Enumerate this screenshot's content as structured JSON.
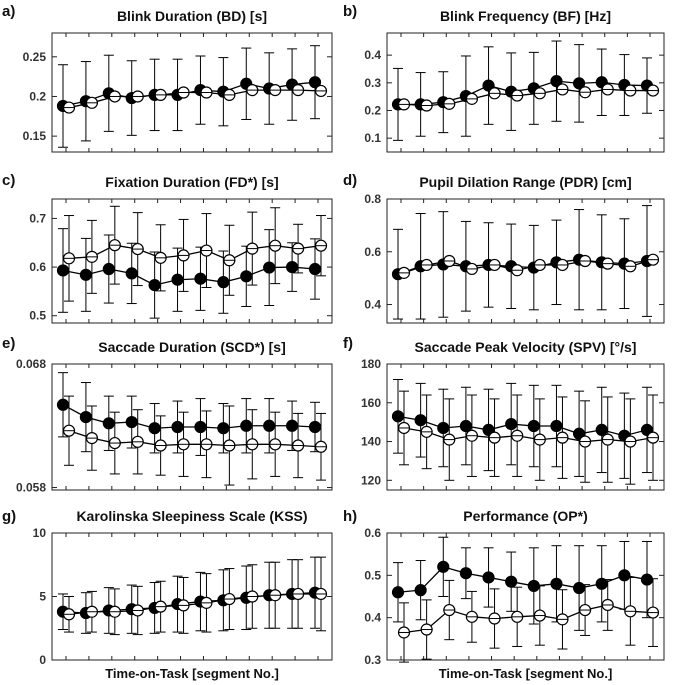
{
  "chart_data": [
    {
      "panel": "a)",
      "type": "line",
      "title": "Blink Duration (BD) [s]",
      "xlabel": "",
      "ylabel": "",
      "ylim": [
        0.13,
        0.28
      ],
      "yticks": [
        0.15,
        0.2,
        0.25
      ],
      "yticklabels": [
        "0.15",
        "0.2",
        "0.25"
      ],
      "x": [
        1,
        2,
        3,
        4,
        5,
        6,
        7,
        8,
        9,
        10,
        11,
        12
      ],
      "series": [
        {
          "marker": "filled",
          "values": [
            0.188,
            0.194,
            0.204,
            0.198,
            0.202,
            0.202,
            0.208,
            0.206,
            0.216,
            0.21,
            0.215,
            0.218
          ],
          "error": [
            0.052,
            0.05,
            0.048,
            0.047,
            0.045,
            0.045,
            0.043,
            0.043,
            0.045,
            0.045,
            0.045,
            0.046
          ]
        },
        {
          "marker": "open",
          "values": [
            0.186,
            0.192,
            0.2,
            0.2,
            0.202,
            0.205,
            0.205,
            0.202,
            0.208,
            0.208,
            0.208,
            0.207
          ],
          "error": [
            0.0,
            0.0,
            0.0,
            0.0,
            0.0,
            0.0,
            0.0,
            0.0,
            0.0,
            0.0,
            0.0,
            0.0
          ]
        }
      ]
    },
    {
      "panel": "b)",
      "type": "line",
      "title": "Blink Frequency (BF) [Hz]",
      "xlabel": "",
      "ylabel": "",
      "ylim": [
        0.05,
        0.48
      ],
      "yticks": [
        0.1,
        0.2,
        0.3,
        0.4
      ],
      "yticklabels": [
        "0.1",
        "0.2",
        "0.3",
        "0.4"
      ],
      "x": [
        1,
        2,
        3,
        4,
        5,
        6,
        7,
        8,
        9,
        10,
        11,
        12
      ],
      "series": [
        {
          "marker": "filled",
          "values": [
            0.222,
            0.222,
            0.23,
            0.252,
            0.29,
            0.268,
            0.28,
            0.306,
            0.298,
            0.302,
            0.292,
            0.29
          ],
          "error": [
            0.13,
            0.115,
            0.11,
            0.145,
            0.14,
            0.14,
            0.13,
            0.145,
            0.14,
            0.12,
            0.11,
            0.1
          ]
        },
        {
          "marker": "open",
          "values": [
            0.222,
            0.218,
            0.224,
            0.242,
            0.262,
            0.254,
            0.262,
            0.276,
            0.266,
            0.276,
            0.272,
            0.272
          ],
          "error": [
            0.0,
            0.0,
            0.0,
            0.0,
            0.0,
            0.0,
            0.0,
            0.0,
            0.0,
            0.0,
            0.0,
            0.0
          ]
        }
      ]
    },
    {
      "panel": "c)",
      "type": "line",
      "title": "Fixation Duration (FD*) [s]",
      "xlabel": "",
      "ylabel": "",
      "ylim": [
        0.485,
        0.74
      ],
      "yticks": [
        0.5,
        0.6,
        0.7
      ],
      "yticklabels": [
        "0.5",
        "0.6",
        "0.7"
      ],
      "x": [
        1,
        2,
        3,
        4,
        5,
        6,
        7,
        8,
        9,
        10,
        11,
        12
      ],
      "series": [
        {
          "marker": "filled",
          "values": [
            0.593,
            0.584,
            0.596,
            0.587,
            0.563,
            0.574,
            0.576,
            0.569,
            0.581,
            0.599,
            0.6,
            0.596
          ],
          "error": [
            0.086,
            0.075,
            0.07,
            0.062,
            0.068,
            0.065,
            0.065,
            0.064,
            0.062,
            0.078,
            0.05,
            0.062
          ]
        },
        {
          "marker": "open",
          "values": [
            0.618,
            0.621,
            0.645,
            0.637,
            0.619,
            0.624,
            0.634,
            0.614,
            0.638,
            0.644,
            0.638,
            0.644
          ],
          "error": [
            0.088,
            0.075,
            0.08,
            0.075,
            0.068,
            0.074,
            0.076,
            0.072,
            0.075,
            0.078,
            0.05,
            0.062
          ]
        }
      ]
    },
    {
      "panel": "d)",
      "type": "line",
      "title": "Pupil Dilation Range (PDR) [cm]",
      "xlabel": "",
      "ylabel": "",
      "ylim": [
        0.33,
        0.8
      ],
      "yticks": [
        0.4,
        0.6,
        0.8
      ],
      "yticklabels": [
        "0.4",
        "0.6",
        "0.8"
      ],
      "x": [
        1,
        2,
        3,
        4,
        5,
        6,
        7,
        8,
        9,
        10,
        11,
        12
      ],
      "series": [
        {
          "marker": "filled",
          "values": [
            0.515,
            0.545,
            0.552,
            0.545,
            0.55,
            0.545,
            0.54,
            0.56,
            0.57,
            0.56,
            0.555,
            0.565
          ],
          "error": [
            0.17,
            0.2,
            0.2,
            0.17,
            0.16,
            0.16,
            0.16,
            0.16,
            0.19,
            0.18,
            0.17,
            0.21
          ]
        },
        {
          "marker": "open",
          "values": [
            0.52,
            0.55,
            0.565,
            0.535,
            0.55,
            0.53,
            0.55,
            0.55,
            0.565,
            0.555,
            0.545,
            0.57
          ],
          "error": [
            0.0,
            0.0,
            0.0,
            0.0,
            0.0,
            0.0,
            0.0,
            0.0,
            0.0,
            0.0,
            0.0,
            0.0
          ]
        }
      ]
    },
    {
      "panel": "e)",
      "type": "line",
      "title": "Saccade Duration (SCD*) [s]",
      "xlabel": "",
      "ylabel": "",
      "ylim": [
        0.0578,
        0.068
      ],
      "yticks": [
        0.058,
        0.068
      ],
      "yticklabels": [
        "0.058",
        "0.068"
      ],
      "x": [
        1,
        2,
        3,
        4,
        5,
        6,
        7,
        8,
        9,
        10,
        11,
        12
      ],
      "series": [
        {
          "marker": "filled",
          "values": [
            0.0647,
            0.0637,
            0.0632,
            0.0633,
            0.0628,
            0.0629,
            0.0629,
            0.0628,
            0.063,
            0.063,
            0.063,
            0.0629
          ],
          "error": [
            0.0026,
            0.0028,
            0.0022,
            0.0021,
            0.002,
            0.0021,
            0.0023,
            0.002,
            0.0022,
            0.0022,
            0.002,
            0.002
          ]
        },
        {
          "marker": "open",
          "values": [
            0.0626,
            0.062,
            0.0616,
            0.0617,
            0.0614,
            0.0615,
            0.0615,
            0.0614,
            0.0615,
            0.0615,
            0.0614,
            0.0613
          ],
          "error": [
            0.0028,
            0.0026,
            0.0025,
            0.0026,
            0.0024,
            0.0026,
            0.0027,
            0.0032,
            0.0028,
            0.0026,
            0.0026,
            0.0027
          ]
        }
      ]
    },
    {
      "panel": "f)",
      "type": "line",
      "title": "Saccade Peak Velocity (SPV) [°/s]",
      "xlabel": "",
      "ylabel": "",
      "ylim": [
        115,
        180
      ],
      "yticks": [
        120,
        140,
        160,
        180
      ],
      "yticklabels": [
        "120",
        "140",
        "160",
        "180"
      ],
      "x": [
        1,
        2,
        3,
        4,
        5,
        6,
        7,
        8,
        9,
        10,
        11,
        12
      ],
      "series": [
        {
          "marker": "filled",
          "values": [
            153,
            151,
            147,
            148,
            146,
            149,
            148,
            148,
            144,
            146,
            143,
            146
          ],
          "error": [
            19,
            19,
            20,
            20,
            21,
            21,
            21,
            21,
            22,
            22,
            22,
            22
          ]
        },
        {
          "marker": "open",
          "values": [
            147,
            145,
            141,
            143,
            142,
            143,
            141,
            142,
            140,
            141,
            140,
            142
          ],
          "error": [
            19,
            19,
            21,
            21,
            20,
            21,
            21,
            21,
            21,
            22,
            22,
            22
          ]
        }
      ]
    },
    {
      "panel": "g)",
      "type": "line",
      "title": "Karolinska Sleepiness Scale (KSS)",
      "xlabel": "Time-on-Task [segment No.]",
      "ylabel": "",
      "ylim": [
        0,
        10
      ],
      "yticks": [
        0,
        5,
        10
      ],
      "yticklabels": [
        "0",
        "5",
        "10"
      ],
      "x": [
        1,
        2,
        3,
        4,
        5,
        6,
        7,
        8,
        9,
        10,
        11,
        12
      ],
      "series": [
        {
          "marker": "filled",
          "values": [
            3.8,
            3.7,
            3.9,
            4.0,
            4.1,
            4.4,
            4.6,
            4.7,
            4.9,
            5.1,
            5.2,
            5.3
          ],
          "error": [
            1.4,
            1.6,
            1.8,
            1.9,
            2.0,
            2.2,
            2.3,
            2.4,
            2.5,
            2.6,
            2.7,
            2.8
          ]
        },
        {
          "marker": "open",
          "values": [
            3.6,
            3.8,
            3.8,
            3.9,
            4.2,
            4.3,
            4.5,
            4.8,
            5.0,
            5.1,
            5.2,
            5.2
          ],
          "error": [
            1.4,
            1.6,
            1.8,
            1.9,
            2.0,
            2.2,
            2.3,
            2.4,
            2.5,
            2.6,
            2.7,
            2.9
          ]
        }
      ]
    },
    {
      "panel": "h)",
      "type": "line",
      "title": "Performance (OP*)",
      "xlabel": "Time-on-Task [segment No.]",
      "ylabel": "",
      "ylim": [
        0.3,
        0.6
      ],
      "yticks": [
        0.3,
        0.4,
        0.5,
        0.6
      ],
      "yticklabels": [
        "0.3",
        "0.4",
        "0.5",
        "0.6"
      ],
      "x": [
        1,
        2,
        3,
        4,
        5,
        6,
        7,
        8,
        9,
        10,
        11,
        12
      ],
      "series": [
        {
          "marker": "filled",
          "values": [
            0.46,
            0.465,
            0.52,
            0.505,
            0.495,
            0.485,
            0.475,
            0.48,
            0.47,
            0.48,
            0.5,
            0.49
          ],
          "error": [
            0.07,
            0.07,
            0.07,
            0.06,
            0.07,
            0.07,
            0.09,
            0.09,
            0.1,
            0.09,
            0.08,
            0.09
          ]
        },
        {
          "marker": "open",
          "values": [
            0.365,
            0.372,
            0.418,
            0.402,
            0.398,
            0.402,
            0.405,
            0.396,
            0.418,
            0.43,
            0.415,
            0.412
          ],
          "error": [
            0.07,
            0.07,
            0.07,
            0.06,
            0.07,
            0.07,
            0.07,
            0.07,
            0.06,
            0.06,
            0.08,
            0.08
          ]
        }
      ]
    }
  ]
}
